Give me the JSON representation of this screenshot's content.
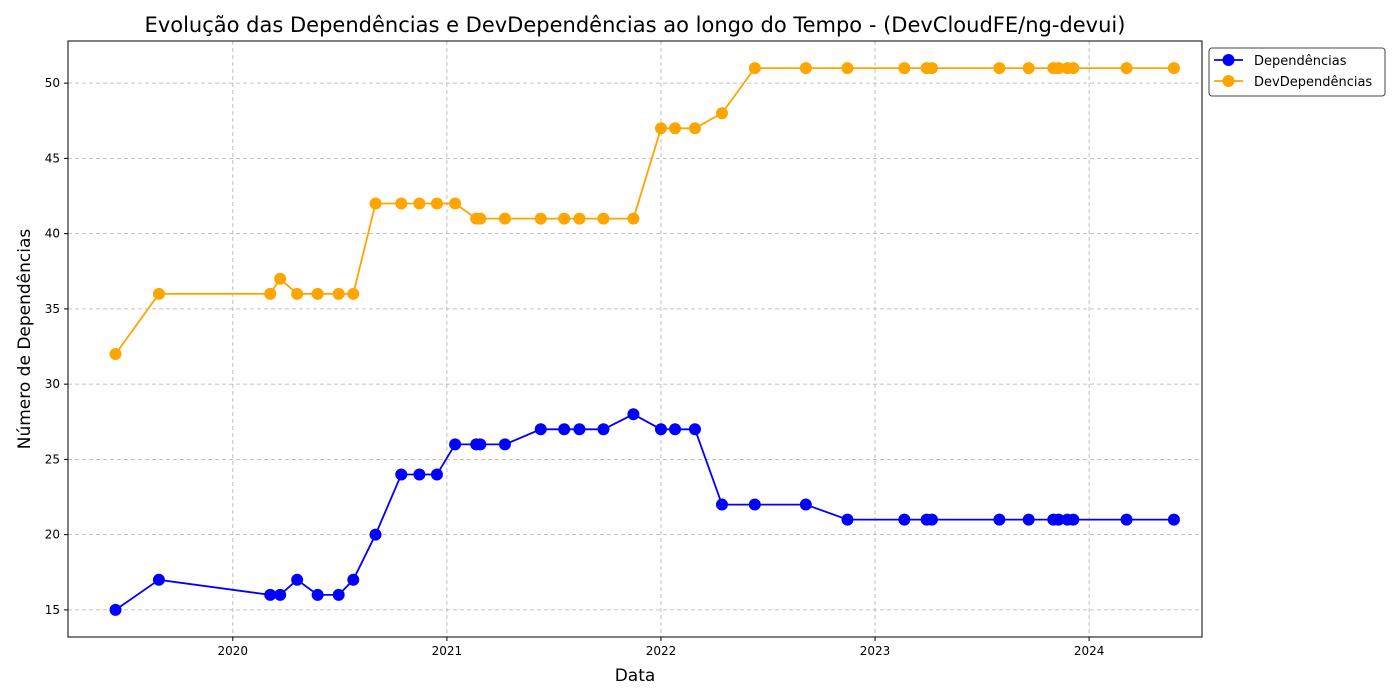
{
  "chart_data": {
    "type": "line",
    "title": "Evolução das Dependências e DevDependências ao longo do Tempo - (DevCloudFE/ng-devui)",
    "xlabel": "Data",
    "ylabel": "Número de Dependências",
    "xlim": [
      "2019-03-26",
      "2024-07-12"
    ],
    "ylim": [
      13.2,
      52.8
    ],
    "x_ticks": [
      "2020",
      "2021",
      "2022",
      "2023",
      "2024"
    ],
    "y_ticks": [
      15,
      20,
      25,
      30,
      35,
      40,
      45,
      50
    ],
    "grid": true,
    "legend_position": "upper-right (outside plot)",
    "x": [
      "2019-06-15",
      "2019-08-28",
      "2020-03-05",
      "2020-03-22",
      "2020-04-20",
      "2020-05-25",
      "2020-06-30",
      "2020-07-25",
      "2020-09-01",
      "2020-10-15",
      "2020-11-15",
      "2020-12-15",
      "2021-01-15",
      "2021-02-20",
      "2021-02-27",
      "2021-04-10",
      "2021-06-10",
      "2021-07-20",
      "2021-08-15",
      "2021-09-25",
      "2021-11-15",
      "2022-01-01",
      "2022-01-25",
      "2022-02-28",
      "2022-04-15",
      "2022-06-10",
      "2022-09-05",
      "2022-11-15",
      "2023-02-20",
      "2023-03-30",
      "2023-04-08",
      "2023-08-01",
      "2023-09-20",
      "2023-11-01",
      "2023-11-10",
      "2023-11-25",
      "2023-12-05",
      "2024-03-05",
      "2024-05-25"
    ],
    "series": [
      {
        "name": "Dependências",
        "color": "#0000ff",
        "values": [
          15,
          17,
          16,
          16,
          17,
          16,
          16,
          17,
          20,
          24,
          24,
          24,
          26,
          26,
          26,
          26,
          27,
          27,
          27,
          27,
          28,
          27,
          27,
          27,
          22,
          22,
          22,
          21,
          21,
          21,
          21,
          21,
          21,
          21,
          21,
          21,
          21,
          21,
          21
        ]
      },
      {
        "name": "DevDependências",
        "color": "#ffa500",
        "values": [
          32,
          36,
          36,
          37,
          36,
          36,
          36,
          36,
          42,
          42,
          42,
          42,
          42,
          41,
          41,
          41,
          41,
          41,
          41,
          41,
          41,
          47,
          47,
          47,
          48,
          51,
          51,
          51,
          51,
          51,
          51,
          51,
          51,
          51,
          51,
          51,
          51,
          51,
          51
        ]
      }
    ]
  }
}
